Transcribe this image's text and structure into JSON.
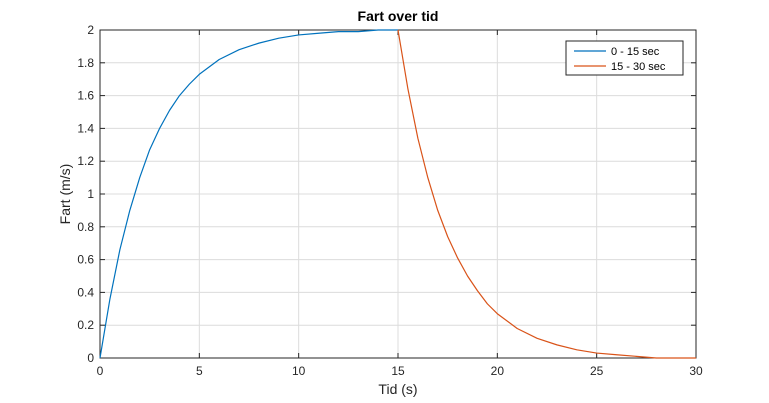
{
  "chart_data": {
    "type": "line",
    "title": "Fart over tid",
    "xlabel": "Tid (s)",
    "ylabel": "Fart (m/s)",
    "xlim": [
      0,
      30
    ],
    "ylim": [
      0,
      2
    ],
    "xticks": [
      0,
      5,
      10,
      15,
      20,
      25,
      30
    ],
    "yticks": [
      0,
      0.2,
      0.4,
      0.6,
      0.8,
      1,
      1.2,
      1.4,
      1.6,
      1.8,
      2
    ],
    "grid": true,
    "legend_position": "top-right",
    "series": [
      {
        "name": "0 - 15 sec",
        "color": "#0072bd",
        "x": [
          0,
          0.5,
          1,
          1.5,
          2,
          2.5,
          3,
          3.5,
          4,
          4.5,
          5,
          6,
          7,
          8,
          9,
          10,
          11,
          12,
          13,
          14,
          15
        ],
        "y": [
          0,
          0.36,
          0.66,
          0.9,
          1.1,
          1.27,
          1.4,
          1.51,
          1.6,
          1.67,
          1.73,
          1.82,
          1.88,
          1.92,
          1.95,
          1.97,
          1.98,
          1.99,
          1.99,
          2.0,
          2.0
        ]
      },
      {
        "name": "15 - 30 sec",
        "color": "#d95319",
        "x": [
          15,
          15.5,
          16,
          16.5,
          17,
          17.5,
          18,
          18.5,
          19,
          19.5,
          20,
          21,
          22,
          23,
          24,
          25,
          26,
          27,
          28,
          29,
          30
        ],
        "y": [
          2.0,
          1.64,
          1.34,
          1.1,
          0.9,
          0.74,
          0.61,
          0.5,
          0.41,
          0.33,
          0.27,
          0.18,
          0.12,
          0.08,
          0.05,
          0.03,
          0.02,
          0.01,
          0.0,
          0.0,
          0.0
        ]
      }
    ]
  }
}
